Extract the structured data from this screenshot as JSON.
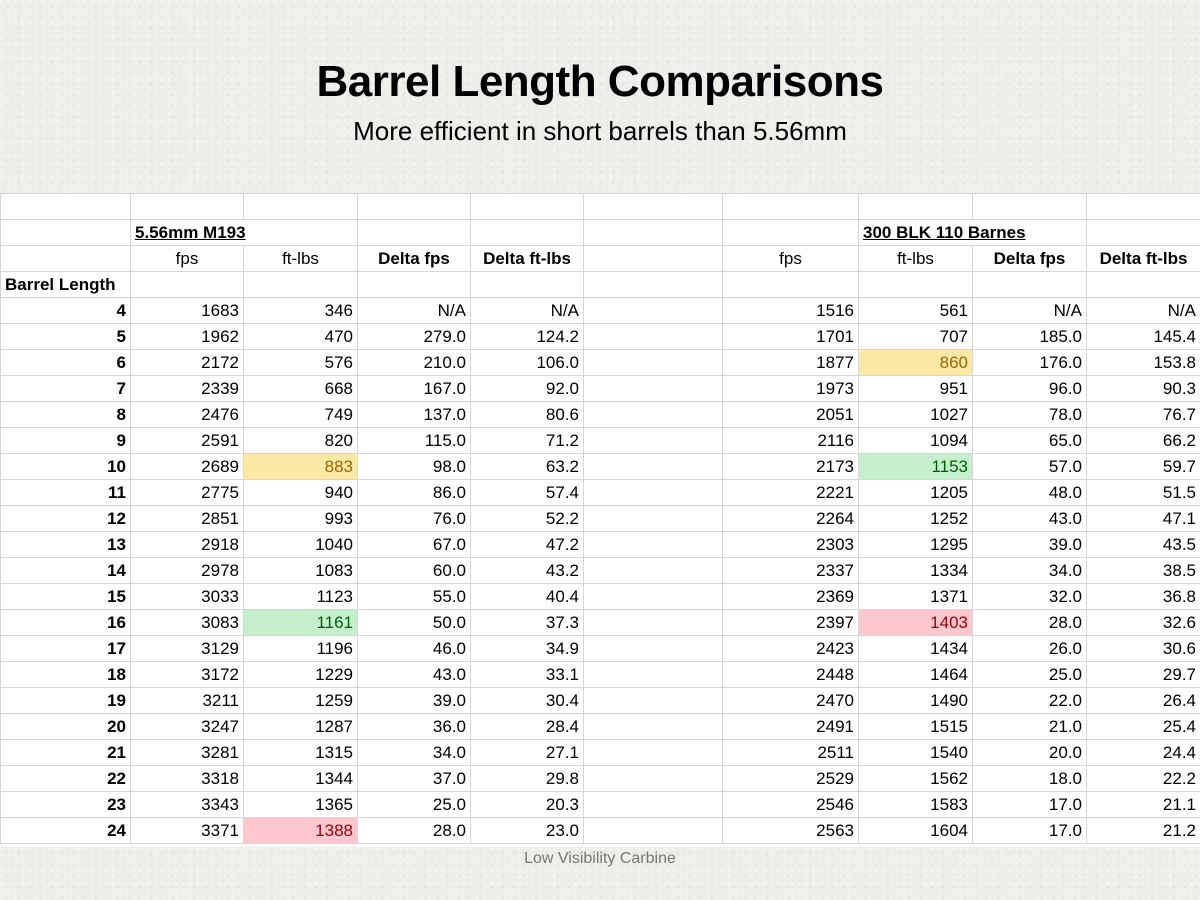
{
  "slide": {
    "title": "Barrel Length Comparisons",
    "subtitle": "More efficient in short barrels than 5.56mm",
    "footer": "Low Visibility Carbine"
  },
  "table": {
    "group_left": "5.56mm M193",
    "group_right": "300 BLK 110 Barnes",
    "headers": {
      "fps": "fps",
      "ftlbs": "ft-lbs",
      "delta_fps": "Delta fps",
      "delta_ftlbs": "Delta ft-lbs",
      "row_label": "Barrel Length"
    },
    "highlight_colors": {
      "yellow_bg": "#fde9a6",
      "yellow_text": "#9c6500",
      "green_bg": "#c6efce",
      "green_text": "#006100",
      "red_bg": "#ffc7ce",
      "red_text": "#9c0006"
    },
    "rows": [
      {
        "len": "4",
        "l_fps": "1683",
        "l_ft": "346",
        "l_dfps": "N/A",
        "l_dft": "N/A",
        "r_fps": "1516",
        "r_ft": "561",
        "r_dfps": "N/A",
        "r_dft": "N/A"
      },
      {
        "len": "5",
        "l_fps": "1962",
        "l_ft": "470",
        "l_dfps": "279.0",
        "l_dft": "124.2",
        "r_fps": "1701",
        "r_ft": "707",
        "r_dfps": "185.0",
        "r_dft": "145.4"
      },
      {
        "len": "6",
        "l_fps": "2172",
        "l_ft": "576",
        "l_dfps": "210.0",
        "l_dft": "106.0",
        "r_fps": "1877",
        "r_ft": "860",
        "r_dfps": "176.0",
        "r_dft": "153.8",
        "r_hl": "yellow"
      },
      {
        "len": "7",
        "l_fps": "2339",
        "l_ft": "668",
        "l_dfps": "167.0",
        "l_dft": "92.0",
        "r_fps": "1973",
        "r_ft": "951",
        "r_dfps": "96.0",
        "r_dft": "90.3"
      },
      {
        "len": "8",
        "l_fps": "2476",
        "l_ft": "749",
        "l_dfps": "137.0",
        "l_dft": "80.6",
        "r_fps": "2051",
        "r_ft": "1027",
        "r_dfps": "78.0",
        "r_dft": "76.7"
      },
      {
        "len": "9",
        "l_fps": "2591",
        "l_ft": "820",
        "l_dfps": "115.0",
        "l_dft": "71.2",
        "r_fps": "2116",
        "r_ft": "1094",
        "r_dfps": "65.0",
        "r_dft": "66.2"
      },
      {
        "len": "10",
        "l_fps": "2689",
        "l_ft": "883",
        "l_dfps": "98.0",
        "l_dft": "63.2",
        "r_fps": "2173",
        "r_ft": "1153",
        "r_dfps": "57.0",
        "r_dft": "59.7",
        "l_hl": "yellow",
        "r_hl": "green"
      },
      {
        "len": "11",
        "l_fps": "2775",
        "l_ft": "940",
        "l_dfps": "86.0",
        "l_dft": "57.4",
        "r_fps": "2221",
        "r_ft": "1205",
        "r_dfps": "48.0",
        "r_dft": "51.5"
      },
      {
        "len": "12",
        "l_fps": "2851",
        "l_ft": "993",
        "l_dfps": "76.0",
        "l_dft": "52.2",
        "r_fps": "2264",
        "r_ft": "1252",
        "r_dfps": "43.0",
        "r_dft": "47.1"
      },
      {
        "len": "13",
        "l_fps": "2918",
        "l_ft": "1040",
        "l_dfps": "67.0",
        "l_dft": "47.2",
        "r_fps": "2303",
        "r_ft": "1295",
        "r_dfps": "39.0",
        "r_dft": "43.5"
      },
      {
        "len": "14",
        "l_fps": "2978",
        "l_ft": "1083",
        "l_dfps": "60.0",
        "l_dft": "43.2",
        "r_fps": "2337",
        "r_ft": "1334",
        "r_dfps": "34.0",
        "r_dft": "38.5"
      },
      {
        "len": "15",
        "l_fps": "3033",
        "l_ft": "1123",
        "l_dfps": "55.0",
        "l_dft": "40.4",
        "r_fps": "2369",
        "r_ft": "1371",
        "r_dfps": "32.0",
        "r_dft": "36.8"
      },
      {
        "len": "16",
        "l_fps": "3083",
        "l_ft": "1161",
        "l_dfps": "50.0",
        "l_dft": "37.3",
        "r_fps": "2397",
        "r_ft": "1403",
        "r_dfps": "28.0",
        "r_dft": "32.6",
        "l_hl": "green",
        "r_hl": "red"
      },
      {
        "len": "17",
        "l_fps": "3129",
        "l_ft": "1196",
        "l_dfps": "46.0",
        "l_dft": "34.9",
        "r_fps": "2423",
        "r_ft": "1434",
        "r_dfps": "26.0",
        "r_dft": "30.6"
      },
      {
        "len": "18",
        "l_fps": "3172",
        "l_ft": "1229",
        "l_dfps": "43.0",
        "l_dft": "33.1",
        "r_fps": "2448",
        "r_ft": "1464",
        "r_dfps": "25.0",
        "r_dft": "29.7"
      },
      {
        "len": "19",
        "l_fps": "3211",
        "l_ft": "1259",
        "l_dfps": "39.0",
        "l_dft": "30.4",
        "r_fps": "2470",
        "r_ft": "1490",
        "r_dfps": "22.0",
        "r_dft": "26.4"
      },
      {
        "len": "20",
        "l_fps": "3247",
        "l_ft": "1287",
        "l_dfps": "36.0",
        "l_dft": "28.4",
        "r_fps": "2491",
        "r_ft": "1515",
        "r_dfps": "21.0",
        "r_dft": "25.4"
      },
      {
        "len": "21",
        "l_fps": "3281",
        "l_ft": "1315",
        "l_dfps": "34.0",
        "l_dft": "27.1",
        "r_fps": "2511",
        "r_ft": "1540",
        "r_dfps": "20.0",
        "r_dft": "24.4"
      },
      {
        "len": "22",
        "l_fps": "3318",
        "l_ft": "1344",
        "l_dfps": "37.0",
        "l_dft": "29.8",
        "r_fps": "2529",
        "r_ft": "1562",
        "r_dfps": "18.0",
        "r_dft": "22.2"
      },
      {
        "len": "23",
        "l_fps": "3343",
        "l_ft": "1365",
        "l_dfps": "25.0",
        "l_dft": "20.3",
        "r_fps": "2546",
        "r_ft": "1583",
        "r_dfps": "17.0",
        "r_dft": "21.1"
      },
      {
        "len": "24",
        "l_fps": "3371",
        "l_ft": "1388",
        "l_dfps": "28.0",
        "l_dft": "23.0",
        "r_fps": "2563",
        "r_ft": "1604",
        "r_dfps": "17.0",
        "r_dft": "21.2",
        "l_hl": "red"
      }
    ]
  }
}
